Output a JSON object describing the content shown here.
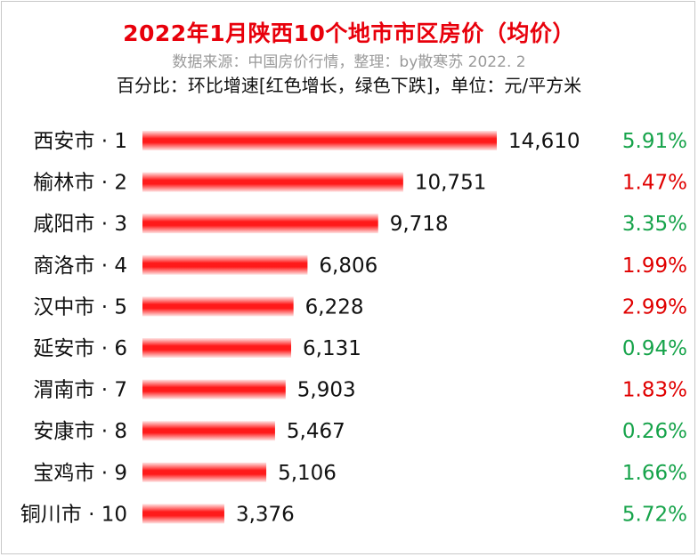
{
  "header": {
    "title": "2022年1月陕西10个地市市区房价（均价）",
    "source": "数据来源：中国房价行情，整理：by散寒苏  2022. 2",
    "note": "百分比：环比增速[红色增长，绿色下跌]，单位：元/平方米"
  },
  "colors": {
    "title": "#e8000b",
    "bar": "#ff1a1a",
    "increase": "#e00000",
    "decrease": "#16a34a"
  },
  "chart_data": {
    "type": "bar",
    "orientation": "horizontal",
    "title": "2022年1月陕西10个地市市区房价（均价）",
    "categories": [
      "西安市 · 1",
      "榆林市 · 2",
      "咸阳市 · 3",
      "商洛市 · 4",
      "汉中市 · 5",
      "延安市 · 6",
      "渭南市 · 7",
      "安康市 · 8",
      "宝鸡市 · 9",
      "铜川市 · 10"
    ],
    "values": [
      14610,
      10751,
      9718,
      6806,
      6228,
      6131,
      5903,
      5467,
      5106,
      3376
    ],
    "value_labels": [
      "14,610",
      "10,751",
      "9,718",
      "6,806",
      "6,228",
      "6,131",
      "5,903",
      "5,467",
      "5,106",
      "3,376"
    ],
    "changes": [
      "5.91%",
      "1.47%",
      "3.35%",
      "1.99%",
      "2.99%",
      "0.94%",
      "1.83%",
      "0.26%",
      "1.66%",
      "5.72%"
    ],
    "change_direction": [
      "down",
      "up",
      "down",
      "up",
      "up",
      "down",
      "up",
      "down",
      "down",
      "down"
    ],
    "xlim": [
      0,
      14610
    ],
    "grid": false,
    "legend": "none"
  }
}
